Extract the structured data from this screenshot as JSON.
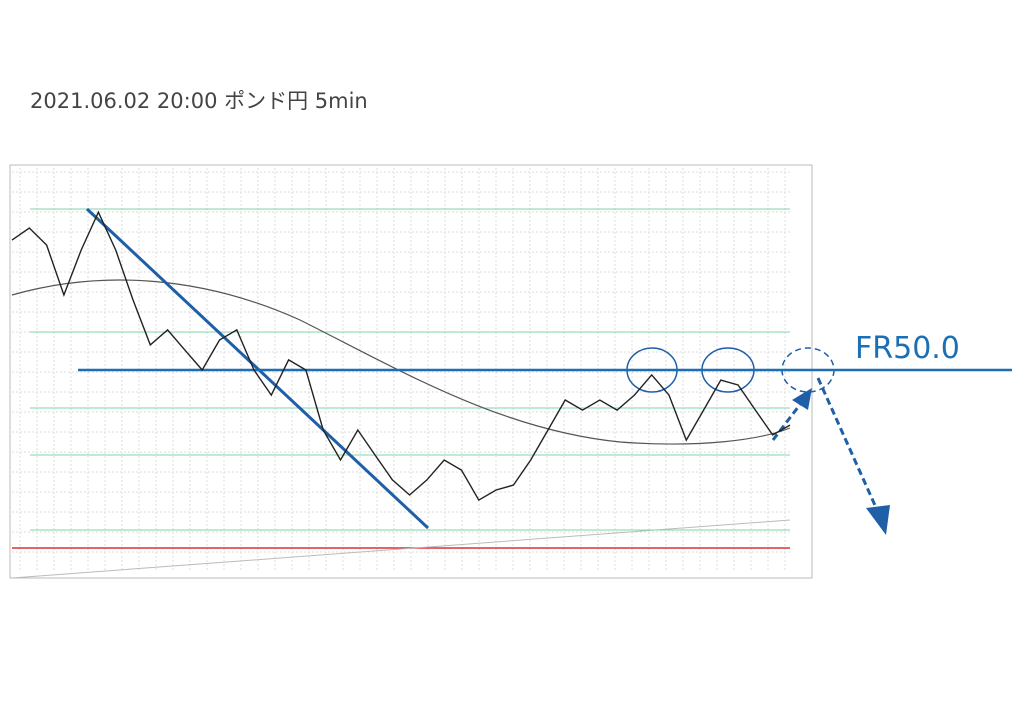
{
  "chart_data": {
    "type": "line",
    "title": "2021.06.02 20:00 ポンド円 5min",
    "annotation": {
      "text": "FR50.0",
      "value": 155.3
    },
    "ylim": [
      154.6,
      156.0
    ],
    "series": [
      {
        "color": "#222222",
        "values": [
          155.75,
          155.792,
          155.733,
          155.56,
          155.716,
          155.847,
          155.716,
          155.543,
          155.387,
          155.439,
          155.369,
          155.3,
          155.404,
          155.439,
          155.3,
          155.213,
          155.335,
          155.3,
          155.092,
          154.988,
          155.092,
          155.005,
          154.919,
          154.867,
          154.919,
          154.988,
          154.953,
          154.849,
          154.884,
          154.901,
          154.988,
          155.092,
          155.196,
          155.161,
          155.196,
          155.161,
          155.213,
          155.283,
          155.213,
          155.057,
          155.161,
          155.265,
          155.248,
          155.161,
          155.075,
          155.109
        ]
      }
    ]
  }
}
